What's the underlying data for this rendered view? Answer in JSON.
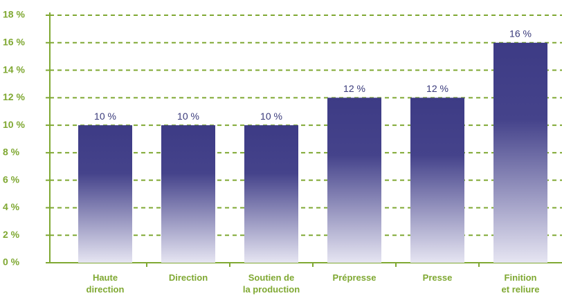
{
  "chart_data": {
    "type": "bar",
    "categories": [
      "Haute\ndirection",
      "Direction",
      "Soutien de\nla production",
      "Prépresse",
      "Presse",
      "Finition\net reliure"
    ],
    "values": [
      10,
      10,
      10,
      12,
      12,
      16
    ],
    "value_labels": [
      "10 %",
      "10 %",
      "10 %",
      "12 %",
      "12 %",
      "16 %"
    ],
    "color": "#3d3b85",
    "ylim": [
      0,
      18
    ],
    "yticks": [
      {
        "value": 0,
        "label": "0 %"
      },
      {
        "value": 2,
        "label": "2 %"
      },
      {
        "value": 4,
        "label": "4 %"
      },
      {
        "value": 6,
        "label": "6 %"
      },
      {
        "value": 8,
        "label": "8 %"
      },
      {
        "value": 10,
        "label": "10 %"
      },
      {
        "value": 12,
        "label": "12 %"
      },
      {
        "value": 14,
        "label": "14 %"
      },
      {
        "value": 16,
        "label": "16 %"
      },
      {
        "value": 18,
        "label": "18 %"
      }
    ],
    "grid": true
  }
}
